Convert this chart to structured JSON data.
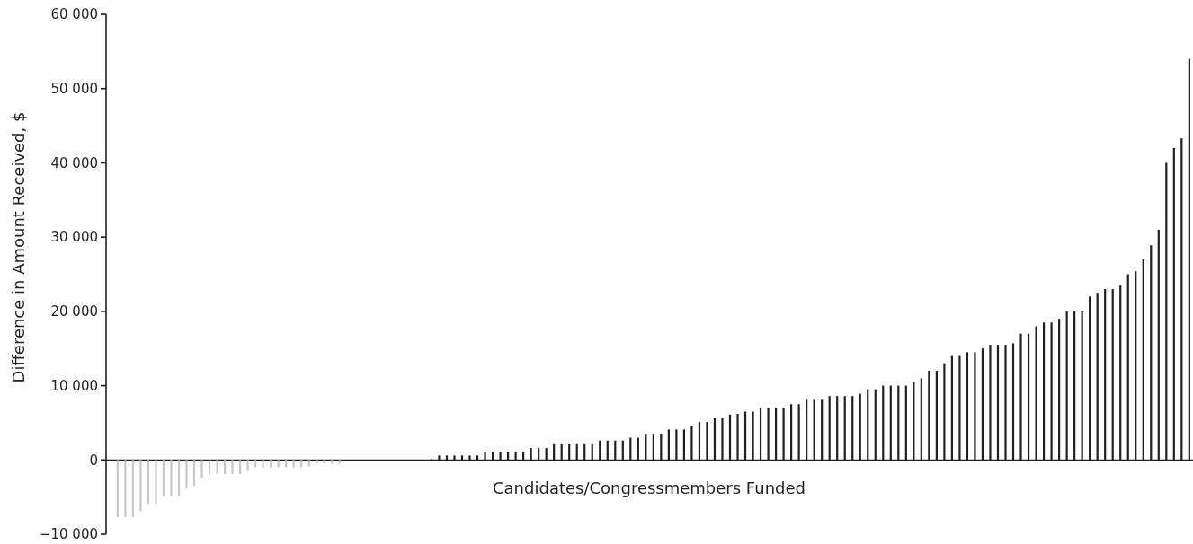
{
  "chart_data": {
    "type": "bar",
    "xlabel": "Candidates/Congressmembers Funded",
    "ylabel": "Difference in Amount Received, $",
    "categories": [
      null,
      null,
      null,
      null,
      null,
      null,
      null,
      null,
      null,
      null,
      null,
      null,
      null,
      null,
      null,
      null,
      null,
      null,
      null,
      null,
      null,
      null,
      null,
      null,
      null,
      null,
      null,
      null,
      null,
      null,
      null,
      null,
      null,
      null,
      null,
      null,
      null,
      null,
      null,
      null,
      null,
      null,
      null,
      null,
      null,
      null,
      null,
      null,
      null,
      null,
      null,
      null,
      null,
      null,
      null,
      null,
      null,
      null,
      null,
      null,
      null,
      null,
      null,
      null,
      null,
      null,
      null,
      null,
      null,
      null,
      null,
      null,
      null,
      null,
      null,
      null,
      null,
      null,
      null,
      null,
      null,
      null,
      null,
      null,
      null,
      null,
      null,
      null,
      null,
      null,
      null,
      null,
      null,
      null,
      null,
      null,
      null,
      null,
      null,
      null,
      null,
      null,
      null,
      null,
      null,
      null,
      null,
      null,
      null,
      null,
      null,
      null,
      null,
      null,
      null,
      null,
      null,
      null,
      null,
      null,
      null,
      null,
      null,
      null,
      null,
      null,
      null,
      null,
      null,
      null,
      null,
      null,
      null,
      null,
      null,
      null,
      null,
      null,
      null,
      null,
      null,
      null
    ],
    "values": [
      null,
      -7700,
      -7700,
      -7700,
      -6900,
      -5900,
      -5900,
      -4900,
      -4900,
      -4900,
      -3900,
      -3500,
      -2500,
      -1900,
      -1900,
      -1900,
      -1900,
      -1900,
      -1500,
      -1000,
      -1000,
      -1000,
      -1000,
      -1000,
      -1000,
      -1000,
      -900,
      -500,
      -500,
      -500,
      -500,
      0,
      0,
      0,
      0,
      0,
      0,
      0,
      0,
      0,
      0,
      0,
      100,
      600,
      600,
      600,
      600,
      600,
      600,
      1100,
      1100,
      1100,
      1100,
      1100,
      1100,
      1600,
      1600,
      1600,
      2100,
      2100,
      2100,
      2100,
      2100,
      2100,
      2600,
      2600,
      2600,
      2600,
      3000,
      3000,
      3400,
      3500,
      3500,
      4100,
      4100,
      4100,
      4600,
      5100,
      5100,
      5600,
      5600,
      6100,
      6200,
      6500,
      6500,
      7000,
      7000,
      7000,
      7000,
      7500,
      7500,
      8100,
      8100,
      8100,
      8600,
      8600,
      8600,
      8600,
      8900,
      9500,
      9500,
      10000,
      10000,
      10000,
      10000,
      10500,
      11000,
      12000,
      12000,
      13000,
      14000,
      14000,
      14500,
      14500,
      15000,
      15500,
      15500,
      15500,
      15700,
      17000,
      17000,
      18000,
      18500,
      18500,
      19000,
      20000,
      20000,
      20000,
      22000,
      22500,
      23000,
      23000,
      23500,
      25000,
      25400,
      27000,
      28900,
      31000,
      40000,
      42000,
      43300,
      54000
    ],
    "colors": [
      null,
      "#c8c8c8",
      "#c8c8c8",
      "#c8c8c8",
      "#c8c8c8",
      "#c8c8c8",
      "#c8c8c8",
      "#c8c8c8",
      "#c8c8c8",
      "#c8c8c8",
      "#c8c8c8",
      "#c8c8c8",
      "#c8c8c8",
      "#c8c8c8",
      "#c8c8c8",
      "#c8c8c8",
      "#c8c8c8",
      "#c8c8c8",
      "#c8c8c8",
      "#c8c8c8",
      "#c8c8c8",
      "#c8c8c8",
      "#c8c8c8",
      "#c8c8c8",
      "#c8c8c8",
      "#c8c8c8",
      "#c8c8c8",
      "#c8c8c8",
      "#c8c8c8",
      "#c8c8c8",
      "#c8c8c8",
      "#231f20",
      "#231f20",
      "#231f20",
      "#231f20",
      "#231f20",
      "#231f20",
      "#231f20",
      "#231f20",
      "#231f20",
      "#231f20",
      "#231f20",
      "#231f20",
      "#231f20",
      "#231f20",
      "#231f20",
      "#231f20",
      "#231f20",
      "#231f20",
      "#231f20",
      "#231f20",
      "#231f20",
      "#231f20",
      "#231f20",
      "#231f20",
      "#231f20",
      "#231f20",
      "#231f20",
      "#231f20",
      "#231f20",
      "#231f20",
      "#231f20",
      "#231f20",
      "#231f20",
      "#231f20",
      "#231f20",
      "#231f20",
      "#231f20",
      "#231f20",
      "#231f20",
      "#231f20",
      "#231f20",
      "#231f20",
      "#231f20",
      "#231f20",
      "#231f20",
      "#231f20",
      "#231f20",
      "#231f20",
      "#231f20",
      "#231f20",
      "#231f20",
      "#231f20",
      "#231f20",
      "#231f20",
      "#231f20",
      "#231f20",
      "#231f20",
      "#231f20",
      "#231f20",
      "#231f20",
      "#231f20",
      "#231f20",
      "#231f20",
      "#231f20",
      "#231f20",
      "#231f20",
      "#231f20",
      "#231f20",
      "#231f20",
      "#231f20",
      "#231f20",
      "#231f20",
      "#231f20",
      "#231f20",
      "#231f20",
      "#231f20",
      "#231f20",
      "#231f20",
      "#231f20",
      "#231f20",
      "#231f20",
      "#231f20",
      "#231f20",
      "#231f20",
      "#231f20",
      "#231f20",
      "#231f20",
      "#231f20",
      "#231f20",
      "#231f20",
      "#231f20",
      "#231f20",
      "#231f20",
      "#231f20",
      "#231f20",
      "#231f20",
      "#231f20",
      "#231f20",
      "#231f20",
      "#231f20",
      "#231f20",
      "#231f20",
      "#231f20",
      "#231f20",
      "#231f20",
      "#231f20",
      "#231f20",
      "#231f20",
      "#231f20",
      "#231f20",
      "#231f20"
    ],
    "ylim": [
      -10000,
      60000
    ],
    "yticks": [
      {
        "value": -10000,
        "label": "−10 000"
      },
      {
        "value": 0,
        "label": "0"
      },
      {
        "value": 10000,
        "label": "10 000"
      },
      {
        "value": 20000,
        "label": "20 000"
      },
      {
        "value": 30000,
        "label": "30 000"
      },
      {
        "value": 40000,
        "label": "40 000"
      },
      {
        "value": 50000,
        "label": "50 000"
      },
      {
        "value": 60000,
        "label": "60 000"
      }
    ],
    "tick_labels": "y"
  }
}
